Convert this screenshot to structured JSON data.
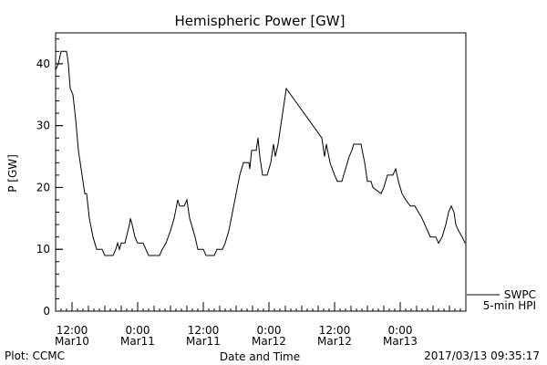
{
  "chart_data": {
    "type": "line",
    "title": "Hemispheric Power [GW]",
    "ylabel": "P [GW]",
    "xlabel": "Date and Time",
    "ylim": [
      0,
      45
    ],
    "yticks": [
      0,
      10,
      20,
      30,
      40
    ],
    "x_start": "2017-03-10T09:00",
    "x_end": "2017-03-13T12:00",
    "xticks": [
      {
        "time": "2017-03-10T12:00",
        "line1": "12:00",
        "line2": "Mar10"
      },
      {
        "time": "2017-03-11T00:00",
        "line1": "0:00",
        "line2": "Mar11"
      },
      {
        "time": "2017-03-11T12:00",
        "line1": "12:00",
        "line2": "Mar11"
      },
      {
        "time": "2017-03-12T00:00",
        "line1": "0:00",
        "line2": "Mar12"
      },
      {
        "time": "2017-03-12T12:00",
        "line1": "12:00",
        "line2": "Mar12"
      },
      {
        "time": "2017-03-13T00:00",
        "line1": "0:00",
        "line2": "Mar13"
      }
    ],
    "legend": {
      "line1": "SWPC",
      "line2": "5-min HPI",
      "placement": "right"
    },
    "series": [
      {
        "name": "SWPC 5-min HPI",
        "color": "#000000",
        "points": [
          [
            "2017-03-10T09:00",
            39
          ],
          [
            "2017-03-10T09:30",
            40
          ],
          [
            "2017-03-10T10:00",
            42
          ],
          [
            "2017-03-10T11:00",
            42
          ],
          [
            "2017-03-10T11:20",
            40
          ],
          [
            "2017-03-10T11:40",
            36
          ],
          [
            "2017-03-10T12:10",
            35
          ],
          [
            "2017-03-10T12:40",
            31
          ],
          [
            "2017-03-10T13:10",
            26
          ],
          [
            "2017-03-10T13:50",
            22
          ],
          [
            "2017-03-10T14:20",
            19
          ],
          [
            "2017-03-10T14:40",
            19
          ],
          [
            "2017-03-10T15:10",
            15
          ],
          [
            "2017-03-10T15:50",
            12
          ],
          [
            "2017-03-10T16:30",
            10
          ],
          [
            "2017-03-10T17:30",
            10
          ],
          [
            "2017-03-10T18:00",
            9
          ],
          [
            "2017-03-10T19:30",
            9
          ],
          [
            "2017-03-10T20:00",
            10
          ],
          [
            "2017-03-10T20:20",
            11
          ],
          [
            "2017-03-10T20:40",
            10
          ],
          [
            "2017-03-10T21:00",
            11
          ],
          [
            "2017-03-10T21:40",
            11
          ],
          [
            "2017-03-10T22:30",
            14
          ],
          [
            "2017-03-10T22:40",
            15
          ],
          [
            "2017-03-10T23:00",
            14
          ],
          [
            "2017-03-10T23:30",
            12
          ],
          [
            "2017-03-11T00:00",
            11
          ],
          [
            "2017-03-11T01:00",
            11
          ],
          [
            "2017-03-11T01:30",
            10
          ],
          [
            "2017-03-11T02:00",
            9
          ],
          [
            "2017-03-11T04:00",
            9
          ],
          [
            "2017-03-11T04:30",
            10
          ],
          [
            "2017-03-11T05:10",
            11
          ],
          [
            "2017-03-11T06:00",
            13
          ],
          [
            "2017-03-11T06:40",
            15
          ],
          [
            "2017-03-11T07:20",
            18
          ],
          [
            "2017-03-11T07:40",
            17
          ],
          [
            "2017-03-11T08:30",
            17
          ],
          [
            "2017-03-11T09:00",
            18
          ],
          [
            "2017-03-11T09:30",
            15
          ],
          [
            "2017-03-11T10:30",
            12
          ],
          [
            "2017-03-11T11:00",
            10
          ],
          [
            "2017-03-11T12:00",
            10
          ],
          [
            "2017-03-11T12:30",
            9
          ],
          [
            "2017-03-11T14:00",
            9
          ],
          [
            "2017-03-11T14:30",
            10
          ],
          [
            "2017-03-11T15:30",
            10
          ],
          [
            "2017-03-11T16:00",
            11
          ],
          [
            "2017-03-11T16:40",
            13
          ],
          [
            "2017-03-11T17:20",
            16
          ],
          [
            "2017-03-11T18:00",
            19
          ],
          [
            "2017-03-11T18:40",
            22
          ],
          [
            "2017-03-11T19:20",
            24
          ],
          [
            "2017-03-11T20:20",
            24
          ],
          [
            "2017-03-11T20:30",
            23
          ],
          [
            "2017-03-11T20:50",
            26
          ],
          [
            "2017-03-11T21:40",
            26
          ],
          [
            "2017-03-11T22:00",
            28
          ],
          [
            "2017-03-11T22:20",
            25
          ],
          [
            "2017-03-11T22:50",
            22
          ],
          [
            "2017-03-11T23:40",
            22
          ],
          [
            "2017-03-12T00:20",
            24
          ],
          [
            "2017-03-12T00:50",
            27
          ],
          [
            "2017-03-12T01:10",
            25
          ],
          [
            "2017-03-12T01:40",
            27
          ],
          [
            "2017-03-12T02:00",
            29
          ],
          [
            "2017-03-12T02:20",
            31
          ],
          [
            "2017-03-12T02:40",
            33
          ],
          [
            "2017-03-12T03:10",
            36
          ],
          [
            "2017-03-12T09:40",
            28
          ],
          [
            "2017-03-12T10:10",
            25
          ],
          [
            "2017-03-12T10:30",
            27
          ],
          [
            "2017-03-12T11:10",
            24
          ],
          [
            "2017-03-12T12:00",
            22
          ],
          [
            "2017-03-12T12:30",
            21
          ],
          [
            "2017-03-12T13:20",
            21
          ],
          [
            "2017-03-12T14:00",
            23
          ],
          [
            "2017-03-12T14:40",
            25
          ],
          [
            "2017-03-12T15:10",
            26
          ],
          [
            "2017-03-12T15:30",
            27
          ],
          [
            "2017-03-12T16:50",
            27
          ],
          [
            "2017-03-12T17:30",
            24
          ],
          [
            "2017-03-12T18:00",
            21
          ],
          [
            "2017-03-12T18:40",
            21
          ],
          [
            "2017-03-12T19:00",
            20
          ],
          [
            "2017-03-12T20:30",
            19
          ],
          [
            "2017-03-12T21:00",
            20
          ],
          [
            "2017-03-12T21:40",
            22
          ],
          [
            "2017-03-12T22:40",
            22
          ],
          [
            "2017-03-12T23:10",
            23
          ],
          [
            "2017-03-12T23:40",
            21
          ],
          [
            "2017-03-13T00:20",
            19
          ],
          [
            "2017-03-13T01:00",
            18
          ],
          [
            "2017-03-13T01:50",
            17
          ],
          [
            "2017-03-13T02:40",
            17
          ],
          [
            "2017-03-13T03:20",
            16
          ],
          [
            "2017-03-13T04:00",
            15
          ],
          [
            "2017-03-13T04:30",
            14
          ],
          [
            "2017-03-13T05:00",
            13
          ],
          [
            "2017-03-13T05:30",
            12
          ],
          [
            "2017-03-13T06:30",
            12
          ],
          [
            "2017-03-13T07:00",
            11
          ],
          [
            "2017-03-13T07:40",
            12
          ],
          [
            "2017-03-13T08:20",
            14
          ],
          [
            "2017-03-13T08:50",
            16
          ],
          [
            "2017-03-13T09:20",
            17
          ],
          [
            "2017-03-13T09:50",
            16
          ],
          [
            "2017-03-13T10:10",
            14
          ],
          [
            "2017-03-13T10:40",
            13
          ],
          [
            "2017-03-13T11:20",
            12
          ],
          [
            "2017-03-13T11:50",
            11
          ]
        ]
      }
    ]
  },
  "footer": {
    "left": "Plot: CCMC",
    "right": "2017/03/13 09:35:17"
  }
}
